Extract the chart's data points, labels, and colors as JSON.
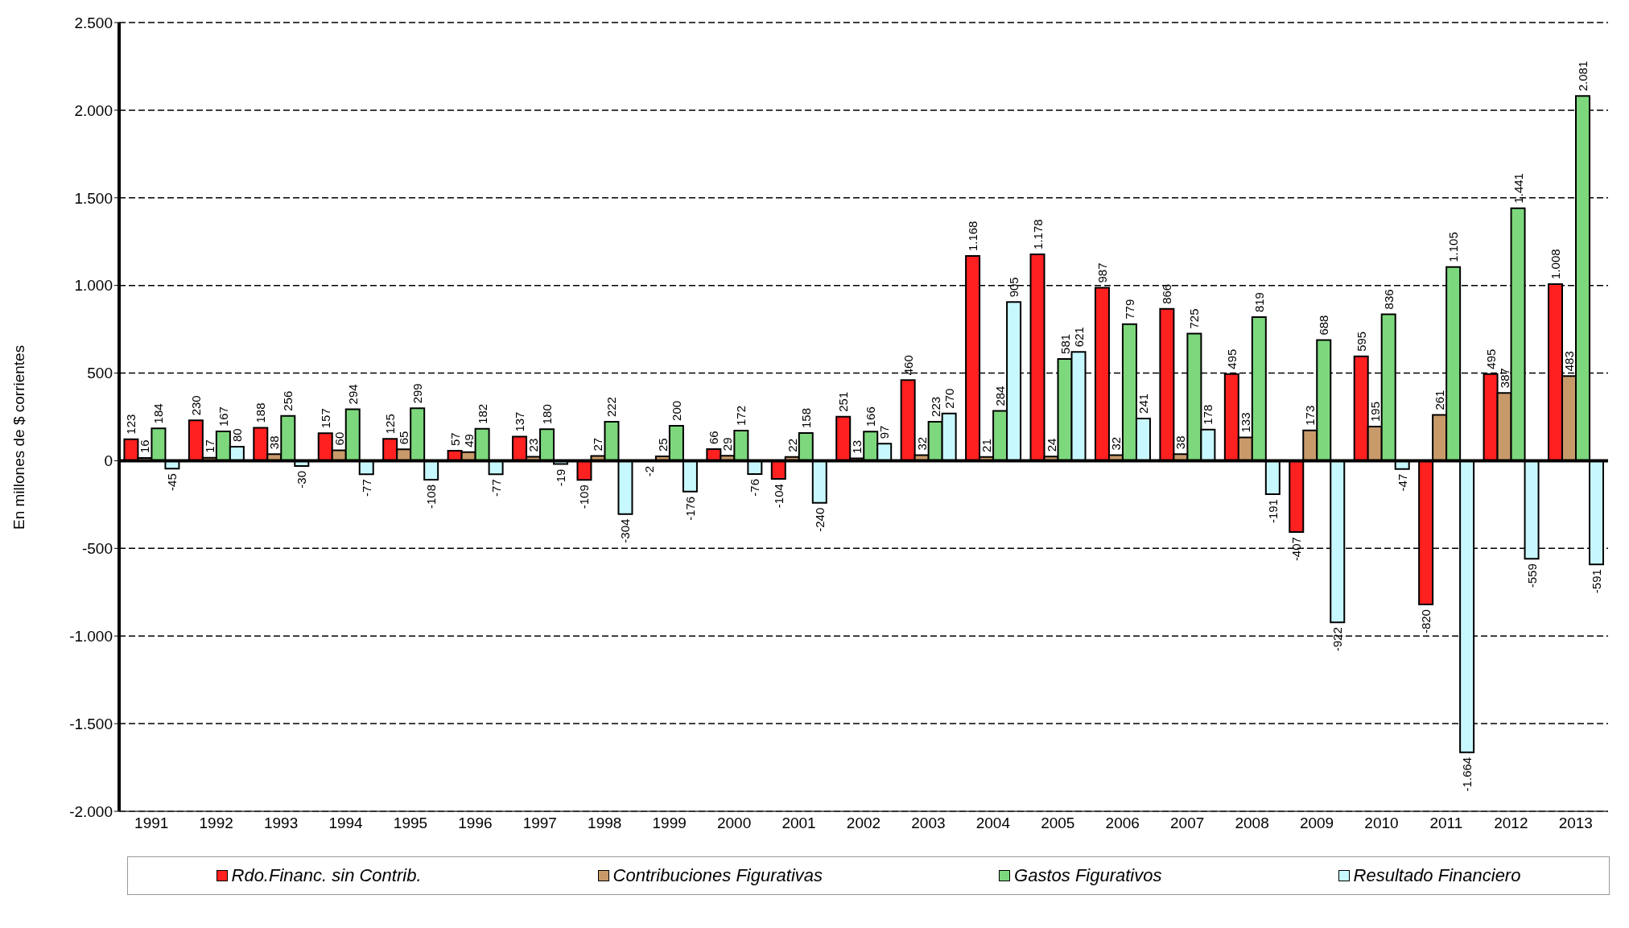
{
  "chart_data": {
    "type": "bar",
    "ylabel": "En millones de $ corrientes",
    "categories": [
      "1991",
      "1992",
      "1993",
      "1994",
      "1995",
      "1996",
      "1997",
      "1998",
      "1999",
      "2000",
      "2001",
      "2002",
      "2003",
      "2004",
      "2005",
      "2006",
      "2007",
      "2008",
      "2009",
      "2010",
      "2011",
      "2012",
      "2013"
    ],
    "series": [
      {
        "name": "Rdo.Financ. sin Contrib.",
        "color": "#ff2020",
        "values": [
          123,
          230,
          188,
          157,
          125,
          57,
          137,
          -109,
          -2,
          66,
          -104,
          251,
          460,
          1168,
          1178,
          987,
          866,
          495,
          -407,
          595,
          -820,
          495,
          1008
        ],
        "value_labels": [
          "123",
          "230",
          "188",
          "157",
          "125",
          "57",
          "137",
          "-109",
          "-2",
          "66",
          "-104",
          "251",
          "460",
          "1.168",
          "1.178",
          "987",
          "866",
          "495",
          "-407",
          "595",
          "-820",
          "495",
          "1.008"
        ]
      },
      {
        "name": "Contribuciones Figurativas",
        "color": "#c89a6a",
        "values": [
          16,
          17,
          38,
          60,
          65,
          49,
          23,
          27,
          25,
          29,
          22,
          13,
          32,
          21,
          24,
          32,
          38,
          133,
          173,
          195,
          261,
          387,
          483
        ],
        "value_labels": [
          "16",
          "17",
          "38",
          "60",
          "65",
          "49",
          "23",
          "27",
          "25",
          "29",
          "22",
          "13",
          "32",
          "21",
          "24",
          "32",
          "38",
          "133",
          "173",
          "195",
          "261",
          "387",
          "483"
        ]
      },
      {
        "name": "Gastos Figurativos",
        "color": "#7dd87d",
        "values": [
          184,
          167,
          256,
          294,
          299,
          182,
          180,
          222,
          200,
          172,
          158,
          166,
          223,
          284,
          581,
          779,
          725,
          819,
          688,
          836,
          1105,
          1441,
          2081
        ],
        "value_labels": [
          "184",
          "167",
          "256",
          "294",
          "299",
          "182",
          "180",
          "222",
          "200",
          "172",
          "158",
          "166",
          "223",
          "284",
          "581",
          "779",
          "725",
          "819",
          "688",
          "836",
          "1.105",
          "1.441",
          "2.081"
        ]
      },
      {
        "name": "Resultado Financiero",
        "color": "#c8f8ff",
        "values": [
          -45,
          80,
          -30,
          -77,
          -108,
          -77,
          -19,
          -304,
          -176,
          -76,
          -240,
          97,
          270,
          905,
          621,
          241,
          178,
          -191,
          -922,
          -47,
          -1664,
          -559,
          -591
        ],
        "value_labels": [
          "-45",
          "80",
          "-30",
          "-77",
          "-108",
          "-77",
          "-19",
          "-304",
          "-176",
          "-76",
          "-240",
          "97",
          "270",
          "905",
          "621",
          "241",
          "178",
          "-191",
          "-922",
          "-47",
          "-1.664",
          "-559",
          "-591"
        ]
      }
    ],
    "ylim": [
      -2000,
      2500
    ],
    "yticks": [
      {
        "value": -2000,
        "label": "-2.000"
      },
      {
        "value": -1500,
        "label": "-1.500"
      },
      {
        "value": -1000,
        "label": "-1.000"
      },
      -500,
      0,
      500,
      {
        "value": 1000,
        "label": "1.000"
      },
      {
        "value": 1500,
        "label": "1.500"
      },
      {
        "value": 2000,
        "label": "2.000"
      },
      {
        "value": 2500,
        "label": "2.500"
      }
    ],
    "grid": "y",
    "legend": "bottom"
  }
}
